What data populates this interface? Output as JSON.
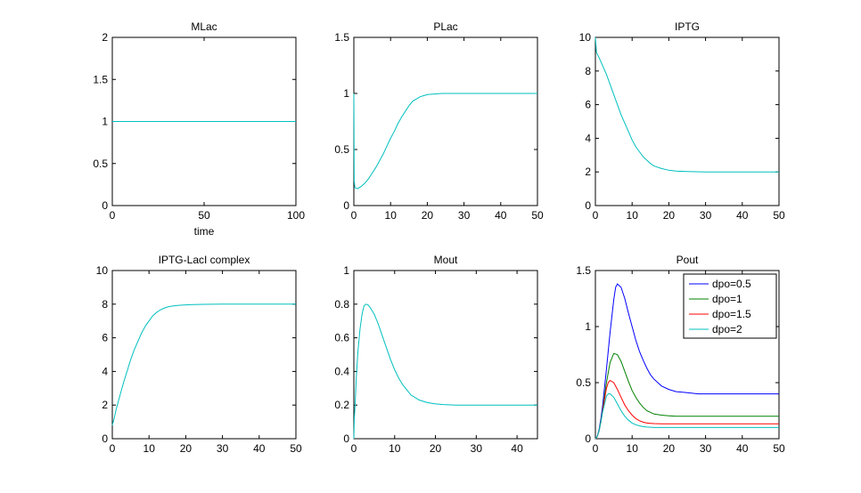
{
  "chart_data": [
    {
      "type": "line",
      "title": "MLac",
      "xlabel": "time",
      "ylabel": "",
      "xlim": [
        0,
        100
      ],
      "ylim": [
        0,
        2
      ],
      "xticks": [
        0,
        50,
        100
      ],
      "yticks": [
        0,
        0.5,
        1,
        1.5,
        2
      ],
      "series": [
        {
          "color": "#00bfbf",
          "x": [
            0,
            100
          ],
          "y": [
            1,
            1
          ]
        }
      ]
    },
    {
      "type": "line",
      "title": "PLac",
      "xlabel": "",
      "ylabel": "",
      "xlim": [
        0,
        50
      ],
      "ylim": [
        0,
        1.5
      ],
      "xticks": [
        0,
        10,
        20,
        30,
        40,
        50
      ],
      "yticks": [
        0,
        0.5,
        1,
        1.5
      ],
      "series": [
        {
          "color": "#00bfbf",
          "x": [
            0,
            0.1,
            0.3,
            1,
            2,
            3,
            4,
            5,
            6,
            7,
            8,
            9,
            10,
            11,
            12,
            13,
            14,
            15,
            16,
            17,
            18,
            19,
            20,
            22,
            24,
            26,
            28,
            30,
            35,
            40,
            45,
            50
          ],
          "y": [
            1.0,
            0.22,
            0.16,
            0.15,
            0.17,
            0.2,
            0.24,
            0.29,
            0.34,
            0.4,
            0.46,
            0.53,
            0.6,
            0.66,
            0.73,
            0.79,
            0.84,
            0.89,
            0.93,
            0.95,
            0.97,
            0.98,
            0.99,
            0.995,
            1.0,
            1.0,
            1.0,
            1.0,
            1.0,
            1.0,
            1.0,
            1.0
          ]
        }
      ]
    },
    {
      "type": "line",
      "title": "IPTG",
      "xlabel": "",
      "ylabel": "",
      "xlim": [
        0,
        50
      ],
      "ylim": [
        0,
        10
      ],
      "xticks": [
        0,
        10,
        20,
        30,
        40,
        50
      ],
      "yticks": [
        0,
        2,
        4,
        6,
        8,
        10
      ],
      "series": [
        {
          "color": "#00bfbf",
          "x": [
            0,
            0.3,
            1,
            2,
            3,
            4,
            5,
            6,
            7,
            8,
            9,
            10,
            11,
            12,
            13,
            14,
            15,
            16,
            18,
            20,
            22,
            25,
            30,
            35,
            40,
            45,
            50
          ],
          "y": [
            10,
            9.1,
            8.8,
            8.3,
            7.8,
            7.2,
            6.6,
            6.0,
            5.4,
            4.9,
            4.4,
            3.9,
            3.5,
            3.2,
            2.9,
            2.7,
            2.5,
            2.35,
            2.2,
            2.1,
            2.05,
            2.02,
            2.0,
            2.0,
            2.0,
            2.0,
            2.0
          ]
        }
      ]
    },
    {
      "type": "line",
      "title": "IPTG-LacI complex",
      "xlabel": "",
      "ylabel": "",
      "xlim": [
        0,
        50
      ],
      "ylim": [
        0,
        10
      ],
      "xticks": [
        0,
        10,
        20,
        30,
        40,
        50
      ],
      "yticks": [
        0,
        2,
        4,
        6,
        8,
        10
      ],
      "series": [
        {
          "color": "#00bfbf",
          "x": [
            0,
            0.5,
            1,
            2,
            3,
            4,
            5,
            6,
            7,
            8,
            9,
            10,
            11,
            12,
            13,
            14,
            15,
            16,
            18,
            20,
            22,
            25,
            30,
            35,
            40,
            45,
            50
          ],
          "y": [
            0.8,
            1.2,
            1.7,
            2.5,
            3.3,
            4.0,
            4.7,
            5.3,
            5.8,
            6.3,
            6.7,
            7.0,
            7.3,
            7.5,
            7.65,
            7.75,
            7.83,
            7.88,
            7.93,
            7.96,
            7.98,
            7.99,
            8.0,
            8.0,
            8.0,
            8.0,
            8.0
          ]
        }
      ]
    },
    {
      "type": "line",
      "title": "Mout",
      "xlabel": "",
      "ylabel": "",
      "xlim": [
        0,
        45
      ],
      "ylim": [
        0,
        1
      ],
      "xticks": [
        0,
        10,
        20,
        30,
        40
      ],
      "yticks": [
        0,
        0.2,
        0.4,
        0.6,
        0.8,
        1
      ],
      "series": [
        {
          "color": "#00bfbf",
          "x": [
            0,
            0.1,
            0.3,
            0.6,
            1,
            1.5,
            2,
            2.5,
            3,
            3.5,
            4,
            5,
            6,
            7,
            8,
            9,
            10,
            11,
            12,
            13,
            14,
            15,
            16,
            18,
            20,
            22,
            25,
            30,
            35,
            40,
            45
          ],
          "y": [
            0,
            0.12,
            0.2,
            0.36,
            0.52,
            0.65,
            0.74,
            0.79,
            0.8,
            0.795,
            0.78,
            0.74,
            0.68,
            0.61,
            0.54,
            0.47,
            0.41,
            0.36,
            0.32,
            0.29,
            0.26,
            0.245,
            0.23,
            0.215,
            0.207,
            0.203,
            0.2,
            0.2,
            0.2,
            0.2,
            0.2
          ]
        }
      ]
    },
    {
      "type": "line",
      "title": "Pout",
      "xlabel": "",
      "ylabel": "",
      "xlim": [
        0,
        50
      ],
      "ylim": [
        0,
        1.5
      ],
      "xticks": [
        0,
        10,
        20,
        30,
        40,
        50
      ],
      "yticks": [
        0,
        0.5,
        1,
        1.5
      ],
      "legend": "top-right",
      "series": [
        {
          "name": "dpo=0.5",
          "color": "#0000ff",
          "x": [
            0,
            0.5,
            1,
            1.5,
            2,
            3,
            4,
            5,
            5.5,
            6,
            7,
            8,
            9,
            10,
            11,
            12,
            13,
            14,
            15,
            16,
            18,
            20,
            22,
            25,
            28,
            30,
            35,
            40,
            45,
            50
          ],
          "y": [
            0,
            0.02,
            0.08,
            0.18,
            0.3,
            0.62,
            0.95,
            1.24,
            1.35,
            1.38,
            1.35,
            1.25,
            1.12,
            1.0,
            0.88,
            0.78,
            0.7,
            0.63,
            0.57,
            0.53,
            0.47,
            0.44,
            0.42,
            0.41,
            0.4,
            0.4,
            0.4,
            0.4,
            0.4,
            0.4
          ]
        },
        {
          "name": "dpo=1",
          "color": "#008000",
          "x": [
            0,
            0.5,
            1,
            1.5,
            2,
            3,
            4,
            5,
            6,
            7,
            8,
            9,
            10,
            11,
            12,
            13,
            14,
            15,
            16,
            18,
            20,
            22,
            25,
            28,
            30,
            35,
            40,
            45,
            50
          ],
          "y": [
            0,
            0.02,
            0.07,
            0.16,
            0.26,
            0.5,
            0.68,
            0.76,
            0.75,
            0.69,
            0.6,
            0.51,
            0.43,
            0.37,
            0.32,
            0.28,
            0.25,
            0.235,
            0.22,
            0.21,
            0.205,
            0.2,
            0.2,
            0.2,
            0.2,
            0.2,
            0.2,
            0.2,
            0.2
          ]
        },
        {
          "name": "dpo=1.5",
          "color": "#ff0000",
          "x": [
            0,
            0.5,
            1,
            1.5,
            2,
            3,
            3.5,
            4,
            5,
            6,
            7,
            8,
            9,
            10,
            11,
            12,
            13,
            14,
            15,
            16,
            18,
            20,
            22,
            25,
            30,
            35,
            40,
            45,
            50
          ],
          "y": [
            0,
            0.02,
            0.07,
            0.15,
            0.25,
            0.45,
            0.5,
            0.52,
            0.5,
            0.44,
            0.37,
            0.3,
            0.25,
            0.21,
            0.18,
            0.16,
            0.148,
            0.14,
            0.137,
            0.135,
            0.133,
            0.133,
            0.133,
            0.133,
            0.133,
            0.133,
            0.133,
            0.133,
            0.133
          ]
        },
        {
          "name": "dpo=2",
          "color": "#00bfbf",
          "x": [
            0,
            0.5,
            1,
            1.5,
            2,
            3,
            3.5,
            4,
            5,
            6,
            7,
            8,
            9,
            10,
            11,
            12,
            13,
            14,
            15,
            16,
            18,
            20,
            22,
            25,
            30,
            35,
            40,
            45,
            50
          ],
          "y": [
            0,
            0.02,
            0.07,
            0.15,
            0.24,
            0.38,
            0.4,
            0.4,
            0.37,
            0.31,
            0.25,
            0.2,
            0.165,
            0.14,
            0.125,
            0.115,
            0.108,
            0.104,
            0.102,
            0.1,
            0.1,
            0.1,
            0.1,
            0.1,
            0.1,
            0.1,
            0.1,
            0.1,
            0.1
          ]
        }
      ]
    }
  ]
}
